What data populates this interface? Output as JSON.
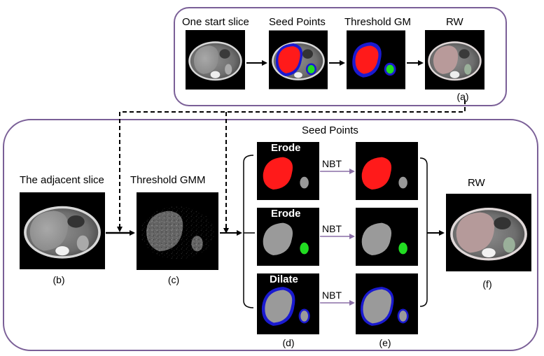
{
  "top_panel": {
    "labels": {
      "start_slice": "One start slice",
      "seed_points": "Seed Points",
      "threshold_gm": "Threshold GM",
      "rw": "RW"
    },
    "caption": "(a)"
  },
  "bottom_panel": {
    "seed_points_title": "Seed Points",
    "adjacent_slice": "The adjacent slice",
    "threshold_gmm": "Threshold GMM",
    "rw": "RW",
    "ops": [
      "Erode",
      "Erode",
      "Dilate"
    ],
    "nbt": [
      "NBT",
      "NBT",
      "NBT"
    ],
    "captions": {
      "b": "(b)",
      "c": "(c)",
      "d": "(d)",
      "e": "(e)",
      "f": "(f)"
    }
  },
  "colors": {
    "panel_border": "#7a5f97",
    "liver_seed": "#ff1a1a",
    "kidney_seed": "#22dd22",
    "boundary_seed": "#1a1ad0",
    "nbt_arrow": "#8a6fa6"
  }
}
